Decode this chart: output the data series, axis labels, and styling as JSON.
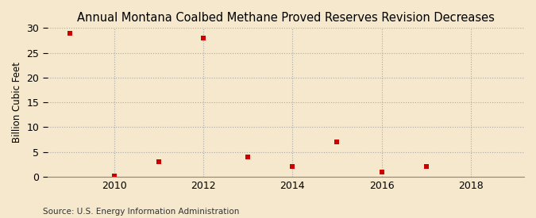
{
  "title": "Annual Montana Coalbed Methane Proved Reserves Revision Decreases",
  "ylabel": "Billion Cubic Feet",
  "source": "Source: U.S. Energy Information Administration",
  "background_color": "#f5e8cc",
  "plot_background_color": "#f5e8cc",
  "marker_color": "#cc0000",
  "marker": "s",
  "marker_size": 4,
  "x_data": [
    2009,
    2010,
    2011,
    2012,
    2013,
    2014,
    2015,
    2016,
    2017
  ],
  "y_data": [
    29.0,
    0.1,
    3.0,
    28.0,
    4.0,
    2.0,
    7.0,
    1.0,
    2.0
  ],
  "xlim": [
    2008.5,
    2019.2
  ],
  "ylim": [
    0,
    30
  ],
  "yticks": [
    0,
    5,
    10,
    15,
    20,
    25,
    30
  ],
  "xticks": [
    2010,
    2012,
    2014,
    2016,
    2018
  ],
  "grid_color": "#aaaaaa",
  "grid_linestyle": ":",
  "grid_linewidth": 0.8,
  "title_fontsize": 10.5,
  "label_fontsize": 8.5,
  "tick_fontsize": 9,
  "source_fontsize": 7.5
}
